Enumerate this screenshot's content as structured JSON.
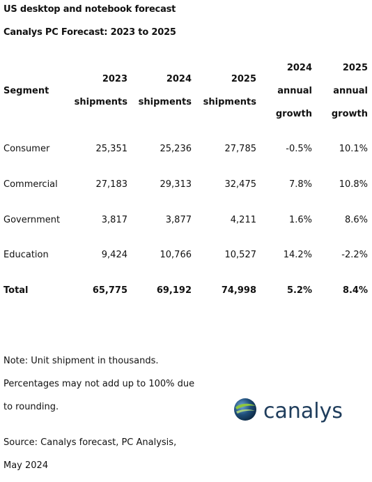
{
  "titles": {
    "main": "US desktop and notebook forecast",
    "sub": "Canalys PC Forecast: 2023 to 2025"
  },
  "table": {
    "headers": [
      [
        "Segment"
      ],
      [
        "2023",
        "shipments"
      ],
      [
        "2024",
        "shipments"
      ],
      [
        "2025",
        "shipments"
      ],
      [
        "2024",
        "annual",
        "growth"
      ],
      [
        "2025",
        "annual",
        "growth"
      ]
    ],
    "rows": [
      [
        "Consumer",
        "25,351",
        "25,236",
        "27,785",
        "-0.5%",
        "10.1%"
      ],
      [
        "Commercial",
        "27,183",
        "29,313",
        "32,475",
        "7.8%",
        "10.8%"
      ],
      [
        "Government",
        "3,817",
        "3,877",
        "4,211",
        "1.6%",
        "8.6%"
      ],
      [
        "Education",
        "9,424",
        "10,766",
        "10,527",
        "14.2%",
        "-2.2%"
      ]
    ],
    "total": [
      "Total",
      "65,775",
      "69,192",
      "74,998",
      "5.2%",
      "8.4%"
    ]
  },
  "notes": {
    "line1": "Note: Unit shipment in thousands.",
    "line2": "Percentages may not add up to 100% due",
    "line3": "to rounding.",
    "line4": "Source: Canalys forecast, PC Analysis,",
    "line5": "May 2024"
  },
  "logo": {
    "text": "canalys",
    "icon": "globe-icon",
    "colors": {
      "globe_dark": "#1f4e79",
      "globe_light": "#8dc63f",
      "text": "#1f3d5c"
    }
  }
}
